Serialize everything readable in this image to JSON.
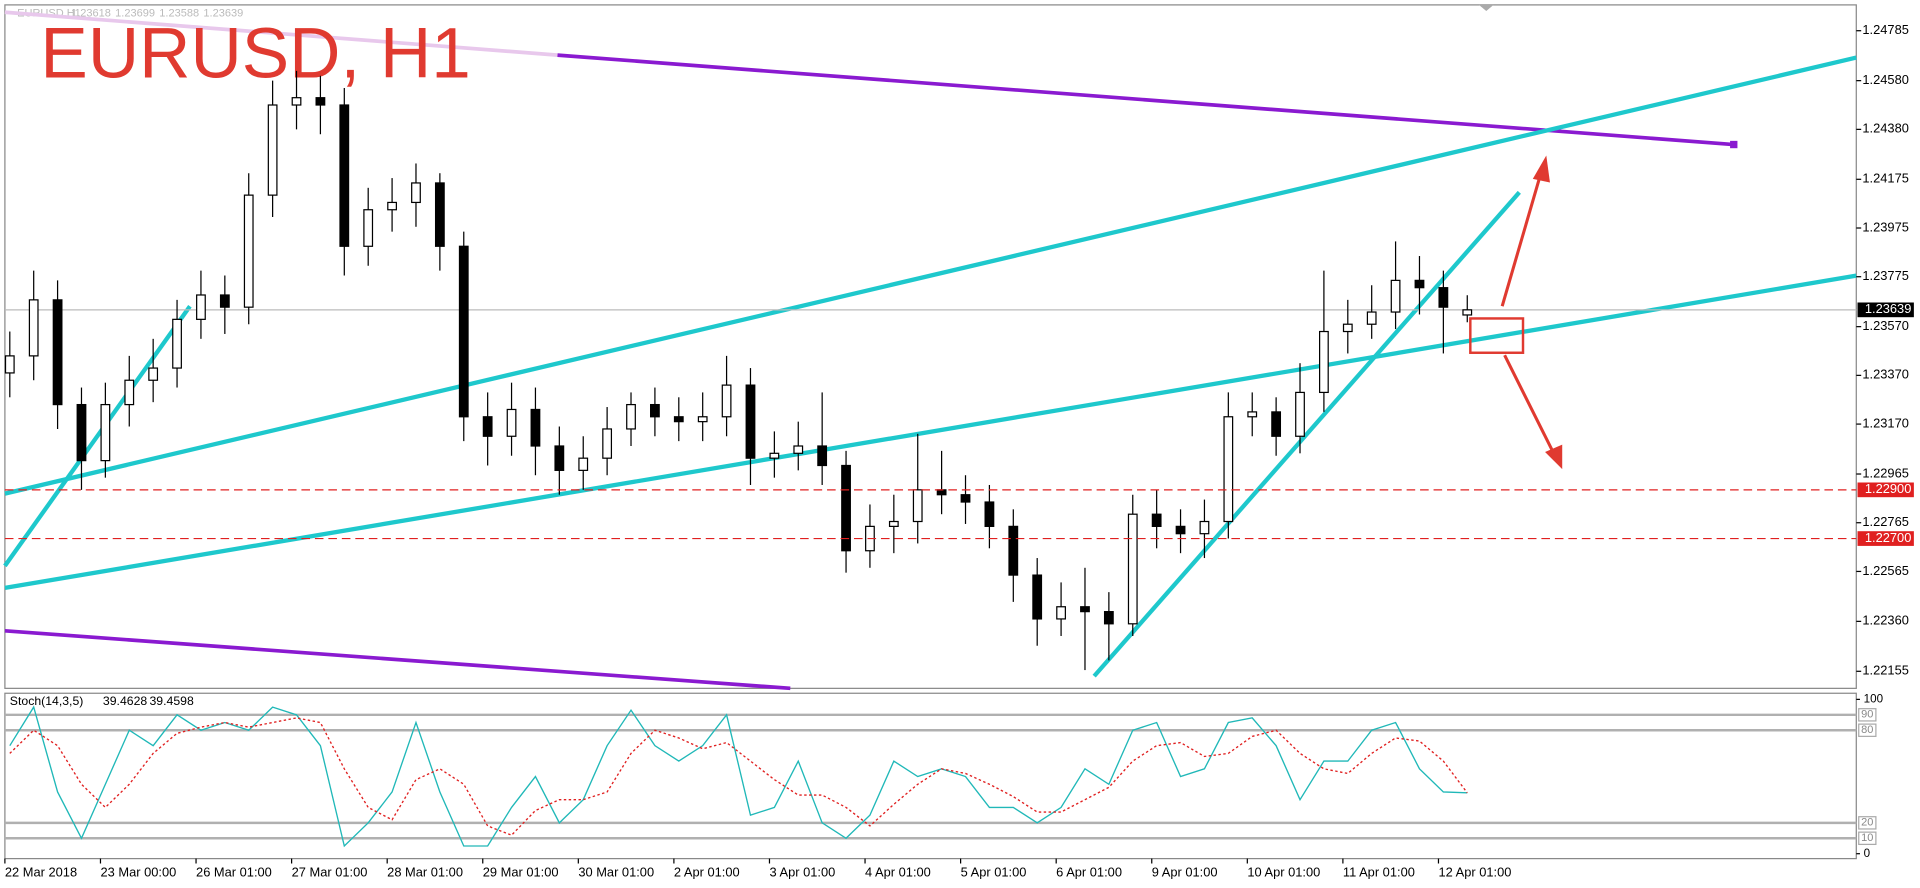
{
  "chart_data": [
    {
      "type": "candlestick",
      "title": "EURUSD, H1",
      "symbol": "EURUSD,H1",
      "categories": [
        "22 Mar 2018",
        null,
        null,
        null,
        "23 Mar 00:00",
        null,
        null,
        null,
        "26 Mar 01:00",
        null,
        null,
        null,
        "27 Mar 01:00",
        null,
        null,
        null,
        "28 Mar 01:00",
        null,
        null,
        null,
        "29 Mar 01:00",
        null,
        null,
        null,
        "30 Mar 01:00",
        null,
        null,
        null,
        "2 Apr 01:00",
        null,
        null,
        null,
        "3 Apr 01:00",
        null,
        null,
        null,
        "4 Apr 01:00",
        null,
        null,
        null,
        "5 Apr 01:00",
        null,
        null,
        null,
        "6 Apr 01:00",
        null,
        null,
        null,
        "9 Apr 01:00",
        null,
        null,
        null,
        "10 Apr 01:00",
        null,
        null,
        null,
        "11 Apr 01:00",
        null,
        null,
        null,
        "12 Apr 01:00",
        null
      ],
      "open": [
        1.2338,
        1.2345,
        1.2368,
        1.2325,
        1.2302,
        1.2325,
        1.2335,
        1.234,
        1.236,
        1.237,
        1.2365,
        1.2411,
        1.2448,
        1.2451,
        1.2448,
        1.239,
        1.2405,
        1.2408,
        1.2416,
        1.239,
        1.232,
        1.2312,
        1.2323,
        1.2308,
        1.2298,
        1.2303,
        1.2315,
        1.2325,
        1.232,
        1.2318,
        1.232,
        1.2333,
        1.2303,
        1.2305,
        1.2308,
        1.23,
        1.2265,
        1.2275,
        1.2277,
        1.229,
        1.2288,
        1.2285,
        1.2275,
        1.2255,
        1.2237,
        1.2242,
        1.224,
        1.2235,
        1.228,
        1.2275,
        1.2272,
        1.2277,
        1.232,
        1.2322,
        1.2312,
        1.233,
        1.2355,
        1.2358,
        1.2363,
        1.2376,
        1.2373,
        1.23618
      ],
      "high": [
        1.2355,
        1.238,
        1.2376,
        1.2332,
        1.2334,
        1.2345,
        1.2352,
        1.2368,
        1.238,
        1.2378,
        1.242,
        1.2458,
        1.2462,
        1.246,
        1.2455,
        1.2414,
        1.2418,
        1.2424,
        1.242,
        1.2396,
        1.233,
        1.2334,
        1.2332,
        1.2316,
        1.2312,
        1.2324,
        1.233,
        1.2332,
        1.2328,
        1.233,
        1.2345,
        1.234,
        1.2314,
        1.2318,
        1.233,
        1.2306,
        1.2284,
        1.2288,
        1.2313,
        1.2306,
        1.2296,
        1.2292,
        1.2282,
        1.2262,
        1.2252,
        1.2258,
        1.2248,
        1.2288,
        1.229,
        1.2282,
        1.2286,
        1.233,
        1.233,
        1.2328,
        1.2342,
        1.238,
        1.2368,
        1.2374,
        1.2392,
        1.2386,
        1.238,
        1.23699
      ],
      "low": [
        1.2328,
        1.2335,
        1.2315,
        1.229,
        1.2295,
        1.2316,
        1.2326,
        1.2332,
        1.2352,
        1.2354,
        1.2358,
        1.2402,
        1.2438,
        1.2436,
        1.2378,
        1.2382,
        1.2396,
        1.2398,
        1.238,
        1.231,
        1.23,
        1.2304,
        1.2296,
        1.2288,
        1.229,
        1.2296,
        1.2308,
        1.2312,
        1.231,
        1.231,
        1.2312,
        1.2292,
        1.2295,
        1.2298,
        1.2292,
        1.2256,
        1.2258,
        1.2264,
        1.2268,
        1.228,
        1.2276,
        1.2266,
        1.2244,
        1.2226,
        1.223,
        1.2216,
        1.222,
        1.223,
        1.2266,
        1.2264,
        1.2262,
        1.227,
        1.2312,
        1.2304,
        1.2305,
        1.2322,
        1.2346,
        1.2352,
        1.2356,
        1.2362,
        1.2346,
        1.23588
      ],
      "close": [
        1.2345,
        1.2368,
        1.2325,
        1.2302,
        1.2325,
        1.2335,
        1.234,
        1.236,
        1.237,
        1.2365,
        1.2411,
        1.2448,
        1.2451,
        1.2448,
        1.239,
        1.2405,
        1.2408,
        1.2416,
        1.239,
        1.232,
        1.2312,
        1.2323,
        1.2308,
        1.2298,
        1.2303,
        1.2315,
        1.2325,
        1.232,
        1.2318,
        1.232,
        1.2333,
        1.2303,
        1.2305,
        1.2308,
        1.23,
        1.2265,
        1.2275,
        1.2277,
        1.229,
        1.2288,
        1.2285,
        1.2275,
        1.2255,
        1.2237,
        1.2242,
        1.224,
        1.2235,
        1.228,
        1.2275,
        1.2272,
        1.2277,
        1.232,
        1.2322,
        1.2312,
        1.233,
        1.2355,
        1.2358,
        1.2363,
        1.2376,
        1.2373,
        1.2365,
        1.23639
      ],
      "up_color": "#ffffff",
      "down_color": "#000000",
      "ylim": [
        1.22085,
        1.24891
      ],
      "yticks": [
        {
          "value": 1.24785,
          "label": "1.24785"
        },
        {
          "value": 1.2458,
          "label": "1.24580"
        },
        {
          "value": 1.2438,
          "label": "1.24380"
        },
        {
          "value": 1.24175,
          "label": "1.24175"
        },
        {
          "value": 1.23975,
          "label": "1.23975"
        },
        {
          "value": 1.23775,
          "label": "1.23775"
        },
        {
          "value": 1.2357,
          "label": "1.23570"
        },
        {
          "value": 1.2337,
          "label": "1.23370"
        },
        {
          "value": 1.2317,
          "label": "1.23170"
        },
        {
          "value": 1.22965,
          "label": "1.22965"
        },
        {
          "value": 1.22765,
          "label": "1.22765"
        },
        {
          "value": 1.22565,
          "label": "1.22565"
        },
        {
          "value": 1.2236,
          "label": "1.22360"
        },
        {
          "value": 1.22155,
          "label": "1.22155"
        }
      ],
      "levels": [
        {
          "value": 1.229,
          "label": "1.22900"
        },
        {
          "value": 1.227,
          "label": "1.22700"
        }
      ],
      "level_color": "#e02020",
      "last_price": 1.23639
    },
    {
      "type": "line",
      "title": "Stoch(14,3,5)",
      "series": [
        {
          "color": "#20b8b8",
          "values": [
            70,
            95,
            40,
            10,
            45,
            80,
            70,
            90,
            80,
            85,
            80,
            95,
            90,
            70,
            5,
            20,
            40,
            85,
            40,
            5,
            5,
            30,
            50,
            20,
            35,
            70,
            93,
            70,
            60,
            70,
            90,
            25,
            30,
            60,
            20,
            10,
            25,
            60,
            50,
            55,
            50,
            30,
            30,
            20,
            30,
            55,
            45,
            80,
            85,
            50,
            55,
            85,
            88,
            70,
            35,
            60,
            60,
            80,
            85,
            55,
            40,
            39.4628
          ]
        },
        {
          "color": "#e02020",
          "dashed": true,
          "values": [
            65,
            80,
            70,
            45,
            30,
            45,
            65,
            78,
            82,
            85,
            82,
            85,
            88,
            85,
            55,
            30,
            22,
            48,
            55,
            45,
            18,
            12,
            28,
            35,
            35,
            40,
            65,
            80,
            75,
            68,
            72,
            60,
            48,
            38,
            38,
            30,
            18,
            32,
            45,
            55,
            52,
            45,
            37,
            27,
            27,
            35,
            43,
            60,
            70,
            72,
            63,
            65,
            76,
            80,
            65,
            55,
            52,
            65,
            75,
            73,
            60,
            39.4598
          ]
        }
      ],
      "ylim": [
        0,
        100
      ],
      "yticks": [
        0,
        100
      ],
      "levels": [
        10,
        20,
        80,
        90
      ]
    }
  ]
}
